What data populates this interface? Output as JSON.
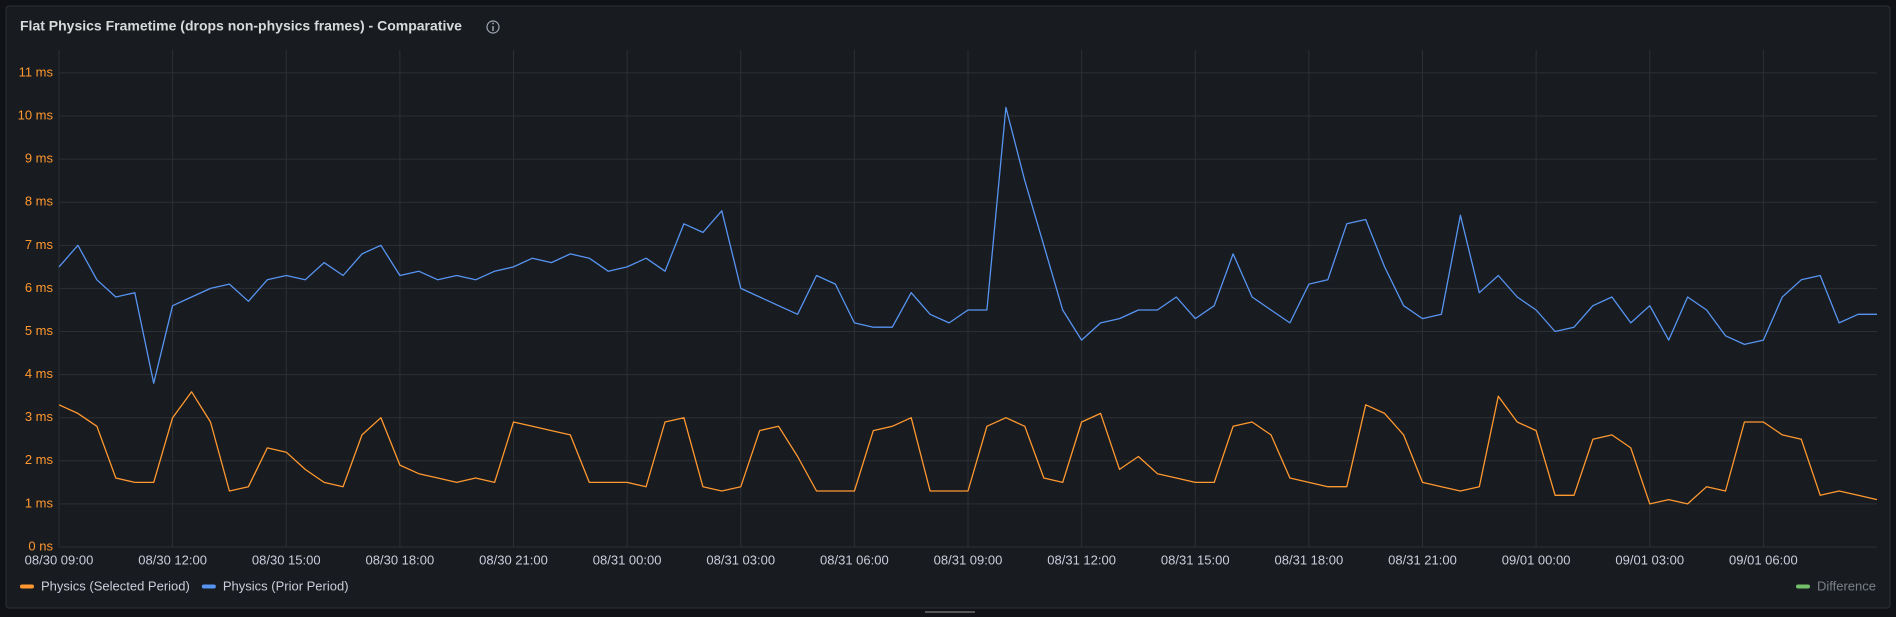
{
  "chart_data": {
    "type": "line",
    "title": "Flat Physics Frametime (drops non-physics frames) - Comparative",
    "x": [
      "08/30 09:00",
      "08/30 09:30",
      "08/30 10:00",
      "08/30 10:30",
      "08/30 11:00",
      "08/30 11:30",
      "08/30 12:00",
      "08/30 12:30",
      "08/30 13:00",
      "08/30 13:30",
      "08/30 14:00",
      "08/30 14:30",
      "08/30 15:00",
      "08/30 15:30",
      "08/30 16:00",
      "08/30 16:30",
      "08/30 17:00",
      "08/30 17:30",
      "08/30 18:00",
      "08/30 18:30",
      "08/30 19:00",
      "08/30 19:30",
      "08/30 20:00",
      "08/30 20:30",
      "08/30 21:00",
      "08/30 21:30",
      "08/30 22:00",
      "08/30 22:30",
      "08/30 23:00",
      "08/30 23:30",
      "08/31 00:00",
      "08/31 00:30",
      "08/31 01:00",
      "08/31 01:30",
      "08/31 02:00",
      "08/31 02:30",
      "08/31 03:00",
      "08/31 03:30",
      "08/31 04:00",
      "08/31 04:30",
      "08/31 05:00",
      "08/31 05:30",
      "08/31 06:00",
      "08/31 06:30",
      "08/31 07:00",
      "08/31 07:30",
      "08/31 08:00",
      "08/31 08:30",
      "08/31 09:00",
      "08/31 09:30",
      "08/31 10:00",
      "08/31 10:30",
      "08/31 11:00",
      "08/31 11:30",
      "08/31 12:00",
      "08/31 12:30",
      "08/31 13:00",
      "08/31 13:30",
      "08/31 14:00",
      "08/31 14:30",
      "08/31 15:00",
      "08/31 15:30",
      "08/31 16:00",
      "08/31 16:30",
      "08/31 17:00",
      "08/31 17:30",
      "08/31 18:00",
      "08/31 18:30",
      "08/31 19:00",
      "08/31 19:30",
      "08/31 20:00",
      "08/31 20:30",
      "08/31 21:00",
      "08/31 21:30",
      "08/31 22:00",
      "08/31 22:30",
      "08/31 23:00",
      "08/31 23:30",
      "09/01 00:00",
      "09/01 00:30",
      "09/01 01:00",
      "09/01 01:30",
      "09/01 02:00",
      "09/01 02:30",
      "09/01 03:00",
      "09/01 03:30",
      "09/01 04:00",
      "09/01 04:30",
      "09/01 05:00",
      "09/01 05:30",
      "09/01 06:00",
      "09/01 06:30",
      "09/01 07:00",
      "09/01 07:30",
      "09/01 08:00",
      "09/01 08:30",
      "09/01 09:00"
    ],
    "series": [
      {
        "name": "Physics (Selected Period)",
        "color": "#ff9830",
        "values": [
          3.3,
          3.1,
          2.8,
          1.6,
          1.5,
          1.5,
          3.0,
          3.6,
          2.9,
          1.3,
          1.4,
          2.3,
          2.2,
          1.8,
          1.5,
          1.4,
          2.6,
          3.0,
          1.9,
          1.7,
          1.6,
          1.5,
          1.6,
          1.5,
          2.9,
          2.8,
          2.7,
          2.6,
          1.5,
          1.5,
          1.5,
          1.4,
          2.9,
          3.0,
          1.4,
          1.3,
          1.4,
          2.7,
          2.8,
          2.1,
          1.3,
          1.3,
          1.3,
          2.7,
          2.8,
          3.0,
          1.3,
          1.3,
          1.3,
          2.8,
          3.0,
          2.8,
          1.6,
          1.5,
          2.9,
          3.1,
          1.8,
          2.1,
          1.7,
          1.6,
          1.5,
          1.5,
          2.8,
          2.9,
          2.6,
          1.6,
          1.5,
          1.4,
          1.4,
          3.3,
          3.1,
          2.6,
          1.5,
          1.4,
          1.3,
          1.4,
          3.5,
          2.9,
          2.7,
          1.2,
          1.2,
          2.5,
          2.6,
          2.3,
          1.0,
          1.1,
          1.0,
          1.4,
          1.3,
          2.9,
          2.9,
          2.6,
          2.5,
          1.2,
          1.3,
          1.2,
          1.1
        ]
      },
      {
        "name": "Physics (Prior Period)",
        "color": "#5794f2",
        "values": [
          6.5,
          7.0,
          6.2,
          5.8,
          5.9,
          3.8,
          5.6,
          5.8,
          6.0,
          6.1,
          5.7,
          6.2,
          6.3,
          6.2,
          6.6,
          6.3,
          6.8,
          7.0,
          6.3,
          6.4,
          6.2,
          6.3,
          6.2,
          6.4,
          6.5,
          6.7,
          6.6,
          6.8,
          6.7,
          6.4,
          6.5,
          6.7,
          6.4,
          7.5,
          7.3,
          7.8,
          6.0,
          5.8,
          5.6,
          5.4,
          6.3,
          6.1,
          5.2,
          5.1,
          5.1,
          5.9,
          5.4,
          5.2,
          5.5,
          5.5,
          10.2,
          8.5,
          7.0,
          5.5,
          4.8,
          5.2,
          5.3,
          5.5,
          5.5,
          5.8,
          5.3,
          5.6,
          6.8,
          5.8,
          5.5,
          5.2,
          6.1,
          6.2,
          7.5,
          7.6,
          6.5,
          5.6,
          5.3,
          5.4,
          7.7,
          5.9,
          6.3,
          5.8,
          5.5,
          5.0,
          5.1,
          5.6,
          5.8,
          5.2,
          5.6,
          4.8,
          5.8,
          5.5,
          4.9,
          4.7,
          4.8,
          5.8,
          6.2,
          6.3,
          5.2,
          5.4,
          5.4
        ]
      },
      {
        "name": "Difference",
        "color": "#73bf69",
        "hidden": true
      }
    ],
    "xlim": [
      "08/30 09:00",
      "09/01 09:00"
    ],
    "xticks": [
      "08/30 09:00",
      "08/30 12:00",
      "08/30 15:00",
      "08/30 18:00",
      "08/30 21:00",
      "08/31 00:00",
      "08/31 03:00",
      "08/31 06:00",
      "08/31 09:00",
      "08/31 12:00",
      "08/31 15:00",
      "08/31 18:00",
      "08/31 21:00",
      "09/01 00:00",
      "09/01 03:00",
      "09/01 06:00"
    ],
    "ylim": [
      0,
      11.3
    ],
    "yticks": [
      {
        "value": 0,
        "label": "0 ns"
      },
      {
        "value": 1,
        "label": "1 ms"
      },
      {
        "value": 2,
        "label": "2 ms"
      },
      {
        "value": 3,
        "label": "3 ms"
      },
      {
        "value": 4,
        "label": "4 ms"
      },
      {
        "value": 5,
        "label": "5 ms"
      },
      {
        "value": 6,
        "label": "6 ms"
      },
      {
        "value": 7,
        "label": "7 ms"
      },
      {
        "value": 8,
        "label": "8 ms"
      },
      {
        "value": 9,
        "label": "9 ms"
      },
      {
        "value": 10,
        "label": "10 ms"
      },
      {
        "value": 11,
        "label": "11 ms"
      }
    ],
    "grid": true
  }
}
